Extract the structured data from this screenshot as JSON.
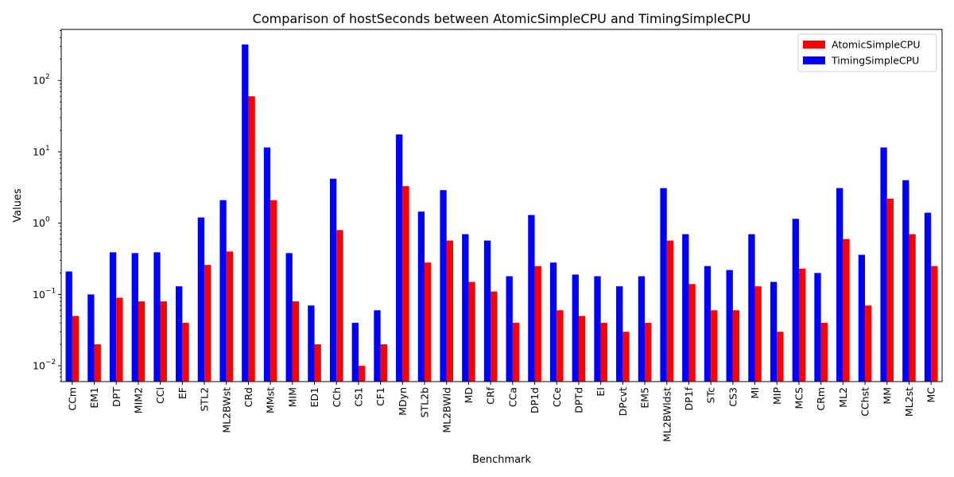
{
  "chart_data": {
    "type": "bar",
    "title": "Comparison of hostSeconds between AtomicSimpleCPU and TimingSimpleCPU",
    "xlabel": "Benchmark",
    "ylabel": "Values",
    "yscale": "log",
    "ylim": [
      0.006,
      520
    ],
    "yticks": [
      0.01,
      0.1,
      1,
      10,
      100
    ],
    "ytick_labels": [
      {
        "base": "10",
        "exp": "−2"
      },
      {
        "base": "10",
        "exp": "−1"
      },
      {
        "base": "10",
        "exp": "0"
      },
      {
        "base": "10",
        "exp": "1"
      },
      {
        "base": "10",
        "exp": "2"
      }
    ],
    "legend_position": "top-right",
    "grid": false,
    "categories": [
      "CCm",
      "EM1",
      "DPT",
      "MIM2",
      "CCl",
      "EF",
      "STL2",
      "ML2BWst",
      "CRd",
      "MMst",
      "MIM",
      "ED1",
      "CCh",
      "CS1",
      "CF1",
      "MDyn",
      "STL2b",
      "ML2BWld",
      "MD",
      "CRf",
      "CCa",
      "DP1d",
      "CCe",
      "DPTd",
      "EI",
      "DPcvt",
      "EM5",
      "ML2BWldst",
      "DP1f",
      "STc",
      "CS3",
      "MI",
      "MIP",
      "MCS",
      "CRm",
      "ML2",
      "CChst",
      "MM",
      "ML2st",
      "MC"
    ],
    "series": [
      {
        "name": "AtomicSimpleCPU",
        "color": "#ff0000",
        "values": [
          0.05,
          0.02,
          0.09,
          0.08,
          0.08,
          0.04,
          0.26,
          0.4,
          60,
          2.1,
          0.08,
          0.02,
          0.8,
          0.01,
          0.02,
          3.3,
          0.28,
          0.57,
          0.15,
          0.11,
          0.04,
          0.25,
          0.06,
          0.05,
          0.04,
          0.03,
          0.04,
          0.57,
          0.14,
          0.06,
          0.06,
          0.13,
          0.03,
          0.23,
          0.04,
          0.6,
          0.07,
          2.2,
          0.7,
          0.25
        ]
      },
      {
        "name": "TimingSimpleCPU",
        "color": "#0000ff",
        "values": [
          0.21,
          0.1,
          0.39,
          0.38,
          0.39,
          0.13,
          1.2,
          2.1,
          320,
          11.5,
          0.38,
          0.07,
          4.2,
          0.04,
          0.06,
          17.5,
          1.45,
          2.9,
          0.7,
          0.57,
          0.18,
          1.3,
          0.28,
          0.19,
          0.18,
          0.13,
          0.18,
          3.1,
          0.7,
          0.25,
          0.22,
          0.7,
          0.15,
          1.15,
          0.2,
          3.1,
          0.36,
          11.5,
          4.0,
          1.4
        ]
      }
    ]
  }
}
